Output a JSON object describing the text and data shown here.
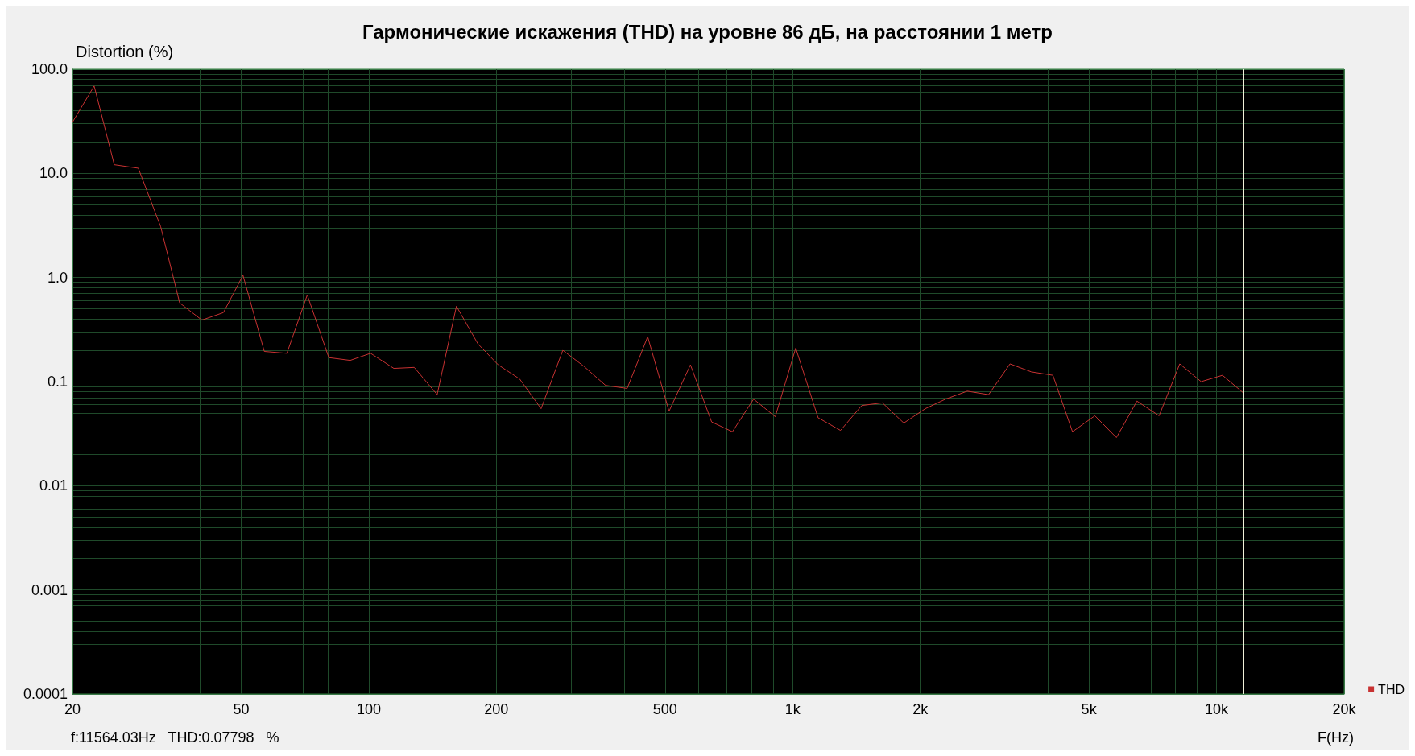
{
  "chart_data": {
    "type": "line",
    "title": "Гармонические искажения (THD) на уровне 86 дБ, на расстоянии 1 метр",
    "xlabel": "F(Hz)",
    "ylabel": "Distortion (%)",
    "x": [
      20,
      22.5,
      25.1,
      28.6,
      32.3,
      35.8,
      40.4,
      45.4,
      50.5,
      56.7,
      64.1,
      71.6,
      80.5,
      90.4,
      101,
      114.6,
      128,
      145,
      161,
      181,
      202,
      227,
      255,
      287,
      322,
      362,
      407,
      455,
      511,
      574,
      644,
      721,
      809,
      910,
      1017,
      1148,
      1297,
      1456,
      1629,
      1829,
      2056,
      2296,
      2582,
      2899,
      3257,
      3658,
      4111,
      4573,
      5165,
      5806,
      6490,
      7320,
      8188,
      9198,
      10330,
      11564
    ],
    "series": [
      {
        "name": "THD",
        "color": "#c83232",
        "values": [
          31,
          69,
          12.1,
          11.2,
          3.07,
          0.57,
          0.39,
          0.46,
          1.05,
          0.195,
          0.187,
          0.68,
          0.17,
          0.16,
          0.187,
          0.134,
          0.137,
          0.075,
          0.53,
          0.23,
          0.145,
          0.106,
          0.055,
          0.2,
          0.14,
          0.092,
          0.086,
          0.27,
          0.052,
          0.145,
          0.041,
          0.033,
          0.068,
          0.046,
          0.21,
          0.045,
          0.034,
          0.059,
          0.0625,
          0.04,
          0.055,
          0.068,
          0.081,
          0.075,
          0.148,
          0.124,
          0.115,
          0.033,
          0.047,
          0.029,
          0.065,
          0.047,
          0.148,
          0.1,
          0.115,
          0.078
        ]
      }
    ],
    "log": "xy",
    "xlim": [
      20,
      20000
    ],
    "ylim": [
      0.0001,
      100
    ],
    "xticks": [
      20,
      50,
      100,
      200,
      500,
      {
        "value": 1000,
        "label": "1k"
      },
      {
        "value": 2000,
        "label": "2k"
      },
      {
        "value": 5000,
        "label": "5k"
      },
      {
        "value": 10000,
        "label": "10k"
      },
      {
        "value": 20000,
        "label": "20k"
      }
    ],
    "yticks": [
      {
        "value": 0.0001,
        "label": "0.0001"
      },
      {
        "value": 0.001,
        "label": "0.001"
      },
      {
        "value": 0.01,
        "label": "0.01"
      },
      {
        "value": 0.1,
        "label": "0.1"
      },
      {
        "value": 1,
        "label": "1.0"
      },
      {
        "value": 10,
        "label": "10.0"
      },
      {
        "value": 100,
        "label": "100.0"
      }
    ],
    "ref_lines": [
      {
        "axis": "x",
        "value": 11564.03,
        "color": "#f0f0d8"
      }
    ],
    "annotations": [
      "f:11564.03Hz   THD:0.07798   %"
    ],
    "grid": true,
    "legend": "bottom right",
    "marker": "none",
    "line_style": "solid"
  }
}
